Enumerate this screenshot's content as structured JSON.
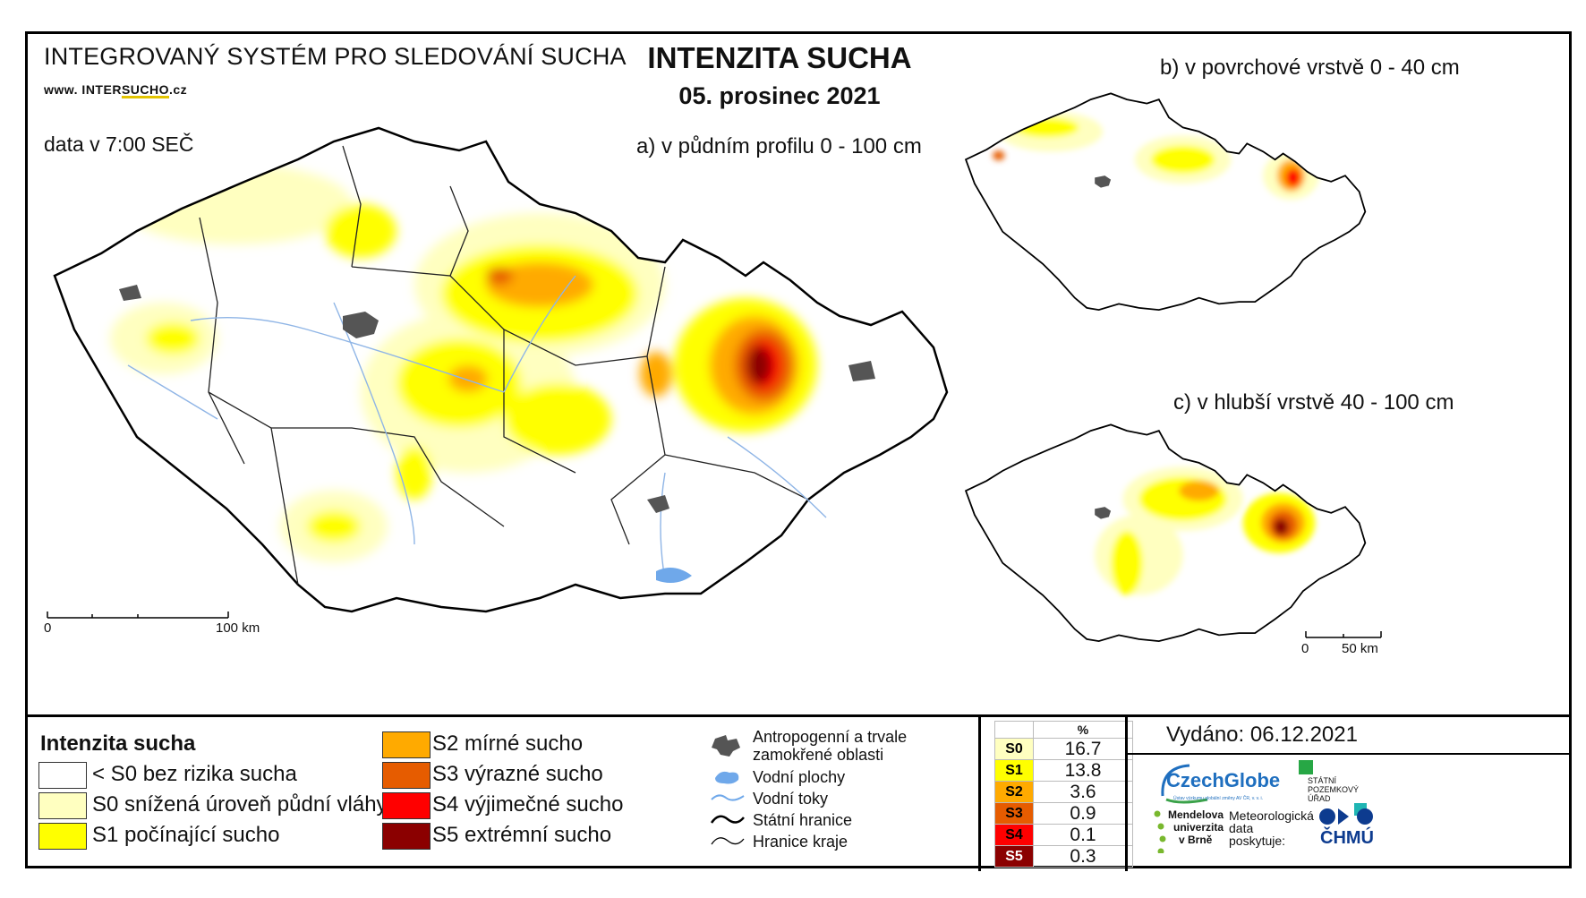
{
  "header": {
    "system_title": "INTEGROVANÝ SYSTÉM PRO SLEDOVÁNÍ SUCHA",
    "website_prefix": "www. INTER",
    "website_mid": "SUCHO",
    "website_suffix": ".cz",
    "data_time": "data v 7:00 SEČ",
    "main_title": "INTENZITA SUCHA",
    "date": "05. prosinec 2021"
  },
  "maps": {
    "a_label": "a) v půdním profilu 0 - 100 cm",
    "b_label": "b) v povrchové vrstvě 0 - 40 cm",
    "c_label": "c) v hlubší vrstvě 40 - 100 cm",
    "scale_main": {
      "start": "0",
      "end": "100 km"
    },
    "scale_small": {
      "start": "0",
      "end": "50 km"
    }
  },
  "legend": {
    "title": "Intenzita sucha",
    "classes": [
      {
        "label": "< S0 bez rizika sucha",
        "color": "#ffffff"
      },
      {
        "label": "S0 snížená úroveň půdní vláhy",
        "color": "#ffffc0"
      },
      {
        "label": "S1 počínající sucho",
        "color": "#ffff00"
      },
      {
        "label": "S2 mírné sucho",
        "color": "#ffaa00"
      },
      {
        "label": "S3 výrazné sucho",
        "color": "#e65c00"
      },
      {
        "label": "S4 výjimečné sucho",
        "color": "#ff0000"
      },
      {
        "label": "S5 extrémní sucho",
        "color": "#8b0000"
      }
    ],
    "symbols": [
      {
        "icon": "anthropogenic-area-icon",
        "label_line1": "Antropogenní a trvale",
        "label_line2": "zamokřené oblasti"
      },
      {
        "icon": "water-body-icon",
        "label_line1": "Vodní plochy"
      },
      {
        "icon": "river-icon",
        "label_line1": "Vodní toky"
      },
      {
        "icon": "state-border-icon",
        "label_line1": "Státní hranice"
      },
      {
        "icon": "region-border-icon",
        "label_line1": "Hranice kraje"
      }
    ]
  },
  "stats": {
    "header": "%",
    "rows": [
      {
        "class": "S0",
        "value": "16.7",
        "color": "#ffffc0",
        "text": "#000"
      },
      {
        "class": "S1",
        "value": "13.8",
        "color": "#ffff00",
        "text": "#000"
      },
      {
        "class": "S2",
        "value": "3.6",
        "color": "#ffaa00",
        "text": "#000"
      },
      {
        "class": "S3",
        "value": "0.9",
        "color": "#e65c00",
        "text": "#000"
      },
      {
        "class": "S4",
        "value": "0.1",
        "color": "#ff0000",
        "text": "#000"
      },
      {
        "class": "S5",
        "value": "0.3",
        "color": "#8b0000",
        "text": "#fff"
      }
    ]
  },
  "footer": {
    "issued": "Vydáno: 06.12.2021",
    "czechglobe": "CzechGlobe",
    "czechglobe_sub": "Ústav výzkumu globální změny AV ČR, v. v. i.",
    "spu_line1": "STÁTNÍ",
    "spu_line2": "POZEMKOVÝ",
    "spu_line3": "ÚŘAD",
    "mendel_line1": "Mendelova",
    "mendel_line2": "univerzita",
    "mendel_line3": "v Brně",
    "meteo_line1": "Meteorologická",
    "meteo_line2": "data",
    "meteo_line3": "poskytuje:",
    "chmu": "ČHMÚ"
  }
}
